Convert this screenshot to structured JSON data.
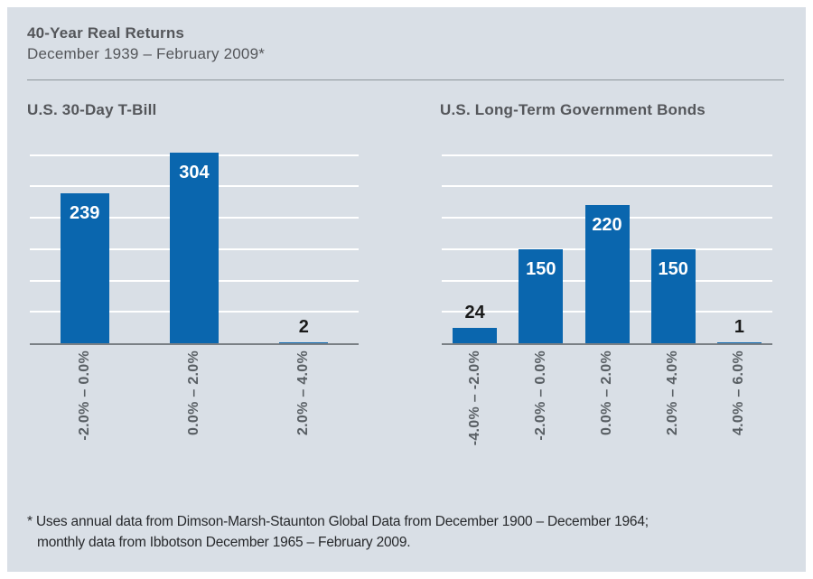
{
  "header": {
    "title": "40-Year Real Returns",
    "subtitle": "December 1939 – February 2009*"
  },
  "chart_data": [
    {
      "type": "bar",
      "title": "U.S. 30-Day T-Bill",
      "categories": [
        "-2.0% – 0.0%",
        "0.0% – 2.0%",
        "2.0% – 4.0%"
      ],
      "values": [
        239,
        304,
        2
      ],
      "xlabel": "",
      "ylabel": "",
      "ylim": [
        0,
        316
      ],
      "gridlines": [
        50,
        100,
        150,
        200,
        250,
        300
      ],
      "grid": true,
      "legend_position": "none",
      "bar_color": "#0a66ae"
    },
    {
      "type": "bar",
      "title": "U.S. Long-Term Government Bonds",
      "categories": [
        "-4.0% – -2.0%",
        "-2.0% – 0.0%",
        "0.0% – 2.0%",
        "2.0% – 4.0%",
        "4.0% – 6.0%"
      ],
      "values": [
        24,
        150,
        220,
        150,
        1
      ],
      "xlabel": "",
      "ylabel": "",
      "ylim": [
        0,
        316
      ],
      "gridlines": [
        50,
        100,
        150,
        200,
        250,
        300
      ],
      "grid": true,
      "legend_position": "none",
      "bar_color": "#0a66ae"
    }
  ],
  "footnote": {
    "line1": "* Uses annual data from Dimson-Marsh-Staunton Global Data from December 1900 – December 1964;",
    "line2": "monthly data from Ibbotson December 1965 – February 2009."
  },
  "colors": {
    "panel_background": "#d9dfe6",
    "outer_border": "#ffffff",
    "bar_blue": "#0a66ae",
    "heading_gray": "#54565a",
    "axis_label_gray": "#595f64",
    "axis_line_gray": "#7a8085",
    "gridline_white": "#ffffff"
  }
}
